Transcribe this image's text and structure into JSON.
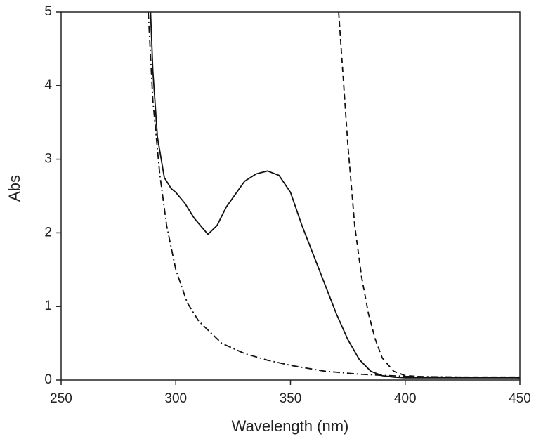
{
  "chart_data": {
    "type": "line",
    "x_label": "Wavelength (nm)",
    "y_label": "Abs",
    "xlim": [
      250,
      450
    ],
    "xticks": [
      250,
      300,
      350,
      400,
      450
    ],
    "ylim": [
      0,
      5
    ],
    "yticks": [
      0,
      1,
      2,
      3,
      4,
      5
    ],
    "series": [
      {
        "color": "#111111",
        "dash": "solid",
        "x": [
          289,
          290,
          292,
          295,
          298,
          300,
          304,
          308,
          314,
          318,
          322,
          330,
          335,
          340,
          345,
          350,
          355,
          360,
          365,
          370,
          375,
          380,
          385,
          390,
          395,
          400,
          450
        ],
        "values": [
          5,
          4.2,
          3.3,
          2.75,
          2.6,
          2.55,
          2.4,
          2.2,
          1.98,
          2.1,
          2.35,
          2.7,
          2.8,
          2.84,
          2.78,
          2.55,
          2.1,
          1.7,
          1.3,
          0.9,
          0.55,
          0.28,
          0.12,
          0.06,
          0.04,
          0.03,
          0.03
        ]
      },
      {
        "color": "#111111",
        "dash": "dashed",
        "x": [
          371,
          373,
          375,
          378,
          381,
          384,
          387,
          390,
          395,
          400,
          410,
          450
        ],
        "values": [
          5,
          4.1,
          3.2,
          2.1,
          1.4,
          0.9,
          0.55,
          0.3,
          0.12,
          0.06,
          0.04,
          0.04
        ]
      },
      {
        "color": "#111111",
        "dash": "dashdot",
        "x": [
          288,
          290,
          293,
          296,
          300,
          305,
          310,
          320,
          330,
          340,
          350,
          365,
          380,
          400,
          450
        ],
        "values": [
          5,
          3.8,
          2.8,
          2.1,
          1.5,
          1.05,
          0.8,
          0.5,
          0.36,
          0.27,
          0.2,
          0.12,
          0.08,
          0.05,
          0.03
        ]
      }
    ]
  }
}
